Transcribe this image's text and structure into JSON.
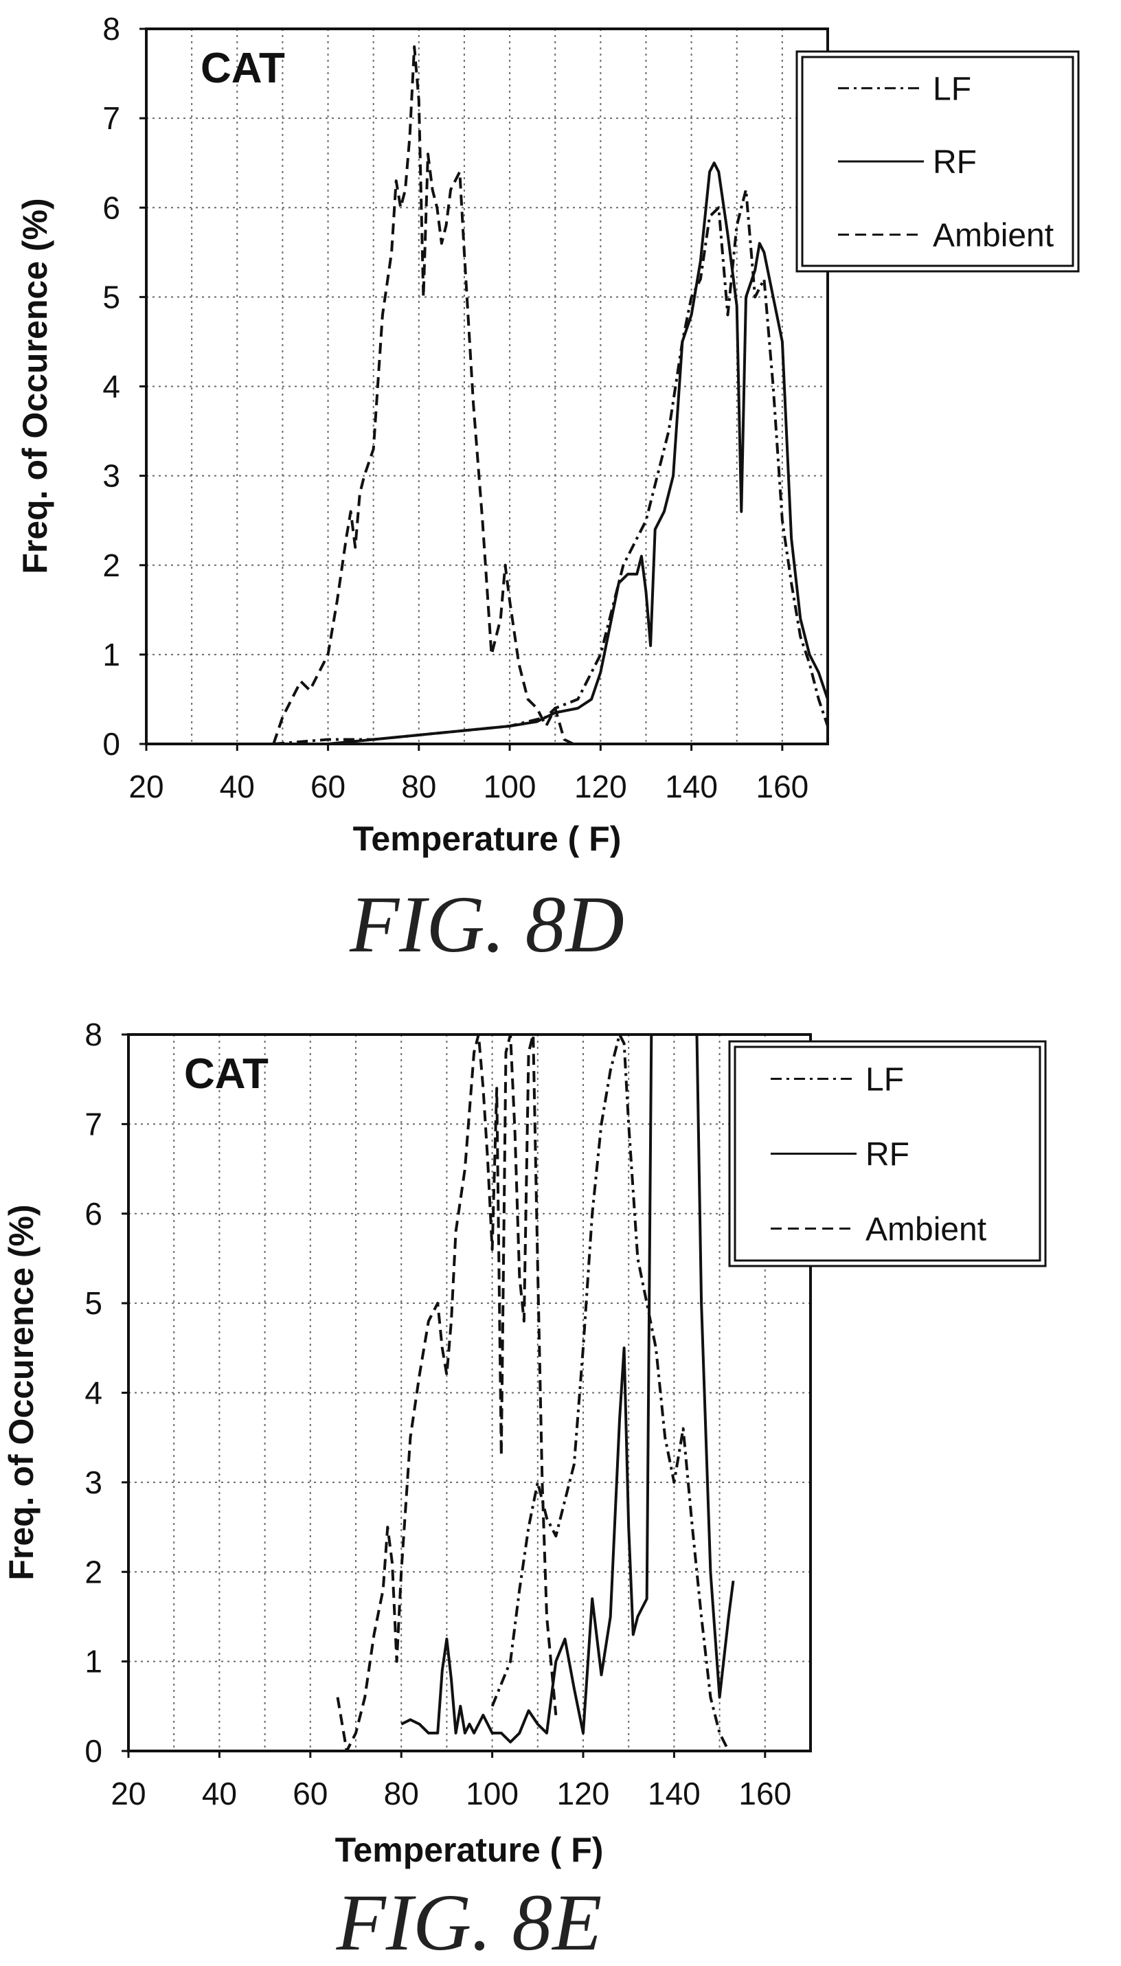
{
  "figures": [
    {
      "caption": "FIG. 8D"
    },
    {
      "caption": "FIG. 8E"
    }
  ],
  "chart_data": [
    {
      "type": "line",
      "panel_label": "CAT",
      "xlabel": "Temperature ( F)",
      "ylabel": "Freq. of Occurence (%)",
      "xlim": [
        20,
        170
      ],
      "ylim": [
        0,
        8
      ],
      "xticks": [
        20,
        40,
        60,
        80,
        100,
        120,
        140,
        160
      ],
      "yticks": [
        0,
        1,
        2,
        3,
        4,
        5,
        6,
        7,
        8
      ],
      "grid": true,
      "legend_position": "top-right",
      "series": [
        {
          "name": "LF",
          "dash": "dashdot",
          "x": [
            48,
            60,
            70,
            80,
            90,
            100,
            108,
            110,
            115,
            120,
            125,
            130,
            135,
            138,
            140,
            142,
            144,
            146,
            148,
            150,
            152,
            154,
            156,
            158,
            160,
            162,
            164,
            166,
            168,
            170
          ],
          "y": [
            0,
            0.05,
            0.05,
            0.1,
            0.15,
            0.2,
            0.3,
            0.4,
            0.5,
            1.0,
            2.0,
            2.5,
            3.5,
            4.5,
            5.0,
            5.2,
            5.9,
            6.0,
            4.8,
            5.8,
            6.2,
            5.0,
            5.2,
            4.0,
            2.5,
            1.8,
            1.2,
            0.9,
            0.5,
            0.2
          ]
        },
        {
          "name": "RF",
          "dash": "solid",
          "x": [
            60,
            70,
            80,
            90,
            100,
            106,
            108,
            110,
            115,
            118,
            120,
            122,
            124,
            126,
            128,
            129,
            130,
            131,
            132,
            134,
            136,
            138,
            140,
            142,
            144,
            145,
            146,
            148,
            150,
            151,
            152,
            154,
            155,
            156,
            158,
            160,
            162,
            164,
            166,
            168,
            170
          ],
          "y": [
            0,
            0.05,
            0.1,
            0.15,
            0.2,
            0.25,
            0.3,
            0.35,
            0.4,
            0.5,
            0.8,
            1.3,
            1.8,
            1.9,
            1.9,
            2.1,
            1.7,
            1.1,
            2.4,
            2.6,
            3.0,
            4.5,
            4.8,
            5.4,
            6.4,
            6.5,
            6.4,
            5.7,
            4.9,
            2.6,
            5.0,
            5.3,
            5.6,
            5.5,
            5.0,
            4.5,
            2.3,
            1.4,
            1.0,
            0.8,
            0.5
          ]
        },
        {
          "name": "Ambient",
          "dash": "dashed",
          "x": [
            48,
            50,
            52,
            54,
            56,
            58,
            60,
            62,
            64,
            65,
            66,
            67,
            68,
            70,
            72,
            74,
            75,
            76,
            77,
            78,
            79,
            80,
            81,
            82,
            83,
            84,
            85,
            86,
            87,
            88,
            89,
            90,
            92,
            94,
            96,
            98,
            99,
            100,
            102,
            104,
            106,
            108,
            110,
            112,
            114
          ],
          "y": [
            0,
            0.3,
            0.5,
            0.7,
            0.6,
            0.8,
            1.0,
            1.6,
            2.3,
            2.6,
            2.2,
            2.8,
            3.0,
            3.3,
            4.8,
            5.5,
            6.3,
            6.0,
            6.2,
            6.8,
            7.8,
            7.2,
            5.0,
            6.6,
            6.2,
            6.0,
            5.6,
            5.8,
            6.2,
            6.3,
            6.4,
            5.5,
            3.8,
            2.5,
            1.0,
            1.4,
            2.0,
            1.6,
            0.9,
            0.5,
            0.4,
            0.2,
            0.4,
            0.05,
            0
          ]
        }
      ]
    },
    {
      "type": "line",
      "panel_label": "CAT",
      "xlabel": "Temperature ( F)",
      "ylabel": "Freq. of Occurence (%)",
      "xlim": [
        20,
        170
      ],
      "ylim": [
        0,
        8
      ],
      "xticks": [
        20,
        40,
        60,
        80,
        100,
        120,
        140,
        160
      ],
      "yticks": [
        0,
        1,
        2,
        3,
        4,
        5,
        6,
        7,
        8
      ],
      "grid": true,
      "legend_position": "top-right",
      "series": [
        {
          "name": "LF",
          "dash": "dashdot",
          "x": [
            100,
            104,
            106,
            108,
            110,
            112,
            114,
            116,
            118,
            120,
            122,
            124,
            126,
            128,
            129,
            130,
            132,
            134,
            136,
            138,
            140,
            142,
            144,
            146,
            148,
            150,
            152
          ],
          "y": [
            0.5,
            1.0,
            1.8,
            2.5,
            3.0,
            2.6,
            2.4,
            2.8,
            3.2,
            4.5,
            6.0,
            7.0,
            7.6,
            8.0,
            7.9,
            7.0,
            5.5,
            5.0,
            4.5,
            3.5,
            3.0,
            3.6,
            2.5,
            1.5,
            0.6,
            0.2,
            0
          ]
        },
        {
          "name": "RF",
          "dash": "solid",
          "x": [
            80,
            82,
            84,
            86,
            88,
            89,
            90,
            91,
            92,
            93,
            94,
            95,
            96,
            98,
            100,
            102,
            104,
            106,
            108,
            110,
            112,
            114,
            116,
            118,
            120,
            122,
            124,
            126,
            128,
            129,
            130,
            131,
            132,
            134,
            135,
            136,
            138,
            140,
            142,
            144,
            145,
            146,
            148,
            150,
            152,
            153
          ],
          "y": [
            0.3,
            0.35,
            0.3,
            0.2,
            0.2,
            0.9,
            1.25,
            0.8,
            0.2,
            0.5,
            0.2,
            0.3,
            0.2,
            0.4,
            0.2,
            0.2,
            0.1,
            0.2,
            0.45,
            0.3,
            0.2,
            1.0,
            1.25,
            0.7,
            0.2,
            1.7,
            0.85,
            1.5,
            3.7,
            4.5,
            2.5,
            1.3,
            1.5,
            1.7,
            8,
            8,
            8,
            8,
            8,
            8,
            8,
            5.0,
            2.0,
            0.6,
            1.5,
            1.9
          ]
        },
        {
          "name": "Ambient",
          "dash": "dashed",
          "x": [
            66,
            68,
            70,
            72,
            74,
            76,
            77,
            78,
            79,
            80,
            82,
            84,
            86,
            88,
            89,
            90,
            91,
            92,
            94,
            96,
            97,
            98,
            99,
            100,
            101,
            102,
            103,
            104,
            105,
            106,
            107,
            108,
            109,
            110,
            111,
            112,
            114
          ],
          "y": [
            0.6,
            0,
            0.2,
            0.6,
            1.3,
            1.8,
            2.5,
            2.1,
            1.0,
            2.0,
            3.5,
            4.2,
            4.8,
            5.0,
            4.5,
            4.2,
            4.8,
            5.8,
            6.5,
            7.8,
            8.0,
            7.4,
            6.6,
            5.6,
            7.4,
            3.3,
            7.8,
            8.0,
            6.9,
            5.3,
            4.8,
            7.8,
            8.0,
            5.4,
            3.0,
            1.5,
            0.4
          ]
        }
      ]
    }
  ]
}
